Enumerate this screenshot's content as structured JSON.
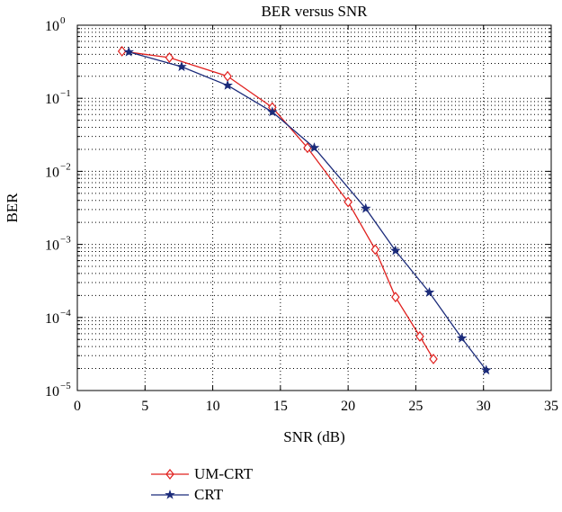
{
  "chart_data": {
    "type": "line",
    "title": "BER versus SNR",
    "xlabel": "SNR (dB)",
    "ylabel": "BER",
    "xlim": [
      0,
      35
    ],
    "ylim": [
      1e-05,
      1
    ],
    "yscale": "log",
    "xticks": [
      0,
      5,
      10,
      15,
      20,
      25,
      30,
      35
    ],
    "yticks": [
      {
        "value": 1e-05,
        "base": "10",
        "exp": "−5"
      },
      {
        "value": 0.0001,
        "base": "10",
        "exp": "−4"
      },
      {
        "value": 0.001,
        "base": "10",
        "exp": "−3"
      },
      {
        "value": 0.01,
        "base": "10",
        "exp": "−2"
      },
      {
        "value": 0.1,
        "base": "10",
        "exp": "−1"
      },
      {
        "value": 1,
        "base": "10",
        "exp": "0"
      }
    ],
    "grid": true,
    "legend_position": "bottom-left, below plot",
    "series": [
      {
        "name": "UM-CRT",
        "color": "#e0201e",
        "marker": "diamond",
        "x": [
          3.3,
          6.8,
          11.1,
          14.4,
          17.0,
          20.0,
          22.0,
          23.5,
          25.3,
          26.3
        ],
        "y": [
          0.44,
          0.36,
          0.2,
          0.075,
          0.021,
          0.0038,
          0.00085,
          0.00019,
          5.5e-05,
          2.7e-05
        ]
      },
      {
        "name": "CRT",
        "color": "#1b2b7a",
        "marker": "star",
        "x": [
          3.8,
          7.7,
          11.1,
          14.4,
          17.5,
          21.3,
          23.5,
          26.0,
          28.4,
          30.2
        ],
        "y": [
          0.43,
          0.27,
          0.15,
          0.065,
          0.021,
          0.0031,
          0.00082,
          0.00022,
          5.2e-05,
          1.9e-05
        ]
      }
    ]
  }
}
